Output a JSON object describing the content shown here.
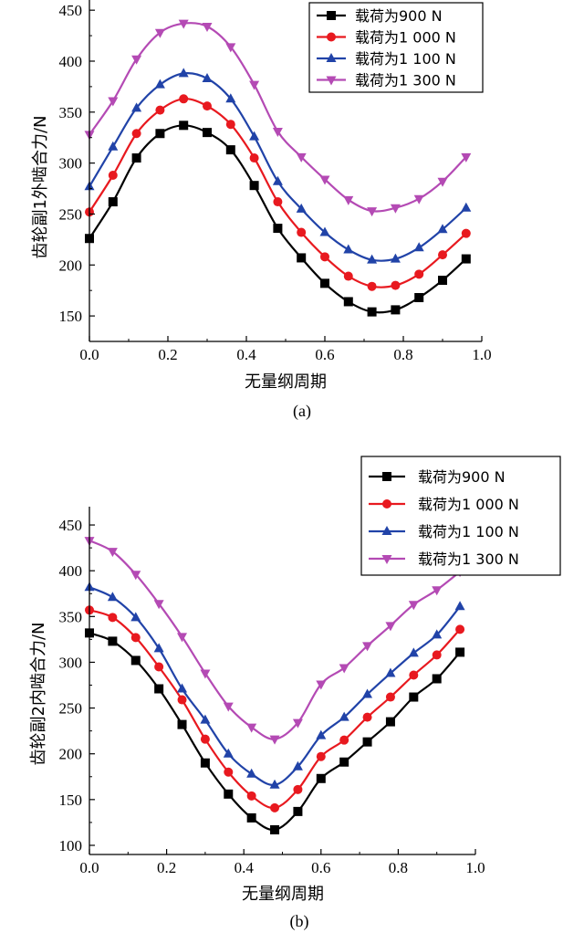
{
  "chart_data": [
    {
      "type": "line",
      "caption": "(a)",
      "xlabel": "无量纲周期",
      "ylabel": "齿轮副1外啮合力/N",
      "xlim": [
        0.0,
        1.0
      ],
      "ylim": [
        125,
        460
      ],
      "x_ticks": [
        0.0,
        0.2,
        0.4,
        0.6,
        0.8,
        1.0
      ],
      "x_tick_labels": [
        "0.0",
        "0.2",
        "0.4",
        "0.6",
        "0.8",
        "1.0"
      ],
      "y_ticks": [
        150,
        200,
        250,
        300,
        350,
        400,
        450
      ],
      "y_tick_labels": [
        "150",
        "200",
        "250",
        "300",
        "350",
        "400",
        "450"
      ],
      "x": [
        0.0,
        0.06,
        0.12,
        0.18,
        0.24,
        0.3,
        0.36,
        0.42,
        0.48,
        0.54,
        0.6,
        0.66,
        0.72,
        0.78,
        0.84,
        0.9,
        0.96
      ],
      "series": [
        {
          "name": "载荷为900 N",
          "color": "#000000",
          "marker": "square",
          "values": [
            226,
            262,
            305,
            329,
            337,
            330,
            313,
            278,
            236,
            207,
            182,
            164,
            154,
            156,
            168,
            185,
            206
          ]
        },
        {
          "name": "载荷为1 000 N",
          "color": "#e8191f",
          "marker": "circle",
          "values": [
            252,
            288,
            329,
            352,
            363,
            356,
            338,
            305,
            262,
            232,
            208,
            189,
            179,
            180,
            191,
            210,
            231
          ]
        },
        {
          "name": "载荷为1 100 N",
          "color": "#2143a8",
          "marker": "triangle-up",
          "values": [
            277,
            316,
            354,
            377,
            388,
            383,
            363,
            326,
            282,
            255,
            232,
            215,
            205,
            206,
            217,
            235,
            256
          ]
        },
        {
          "name": "载荷为1 300 N",
          "color": "#b44ab4",
          "marker": "triangle-down",
          "values": [
            328,
            361,
            402,
            428,
            437,
            434,
            414,
            377,
            331,
            306,
            284,
            264,
            253,
            256,
            265,
            282,
            306
          ]
        }
      ],
      "legend_position": "top-right"
    },
    {
      "type": "line",
      "caption": "(b)",
      "xlabel": "无量纲周期",
      "ylabel": "齿轮副2内啮合力/N",
      "xlim": [
        0.0,
        1.0
      ],
      "ylim": [
        90,
        470
      ],
      "x_ticks": [
        0.0,
        0.2,
        0.4,
        0.6,
        0.8,
        1.0
      ],
      "x_tick_labels": [
        "0.0",
        "0.2",
        "0.4",
        "0.6",
        "0.8",
        "1.0"
      ],
      "y_ticks": [
        100,
        150,
        200,
        250,
        300,
        350,
        400,
        450
      ],
      "y_tick_labels": [
        "100",
        "150",
        "200",
        "250",
        "300",
        "350",
        "400",
        "450"
      ],
      "x": [
        0.0,
        0.06,
        0.12,
        0.18,
        0.24,
        0.3,
        0.36,
        0.42,
        0.48,
        0.54,
        0.6,
        0.66,
        0.72,
        0.78,
        0.84,
        0.9,
        0.96
      ],
      "series": [
        {
          "name": "载荷为900 N",
          "color": "#000000",
          "marker": "square",
          "values": [
            332,
            323,
            302,
            271,
            232,
            190,
            156,
            130,
            117,
            137,
            173,
            191,
            213,
            235,
            262,
            282,
            311
          ]
        },
        {
          "name": "载荷为1 000 N",
          "color": "#e8191f",
          "marker": "circle",
          "values": [
            357,
            349,
            327,
            295,
            259,
            216,
            180,
            154,
            141,
            161,
            197,
            215,
            240,
            262,
            286,
            308,
            336
          ]
        },
        {
          "name": "载荷为1 100 N",
          "color": "#2143a8",
          "marker": "triangle-up",
          "values": [
            382,
            371,
            349,
            315,
            271,
            237,
            200,
            178,
            166,
            186,
            220,
            240,
            265,
            288,
            310,
            330,
            361
          ]
        },
        {
          "name": "载荷为1 300 N",
          "color": "#b44ab4",
          "marker": "triangle-down",
          "values": [
            433,
            421,
            396,
            364,
            328,
            288,
            252,
            229,
            216,
            234,
            276,
            294,
            318,
            340,
            363,
            379,
            399
          ]
        }
      ],
      "legend_position": "top-right"
    }
  ]
}
